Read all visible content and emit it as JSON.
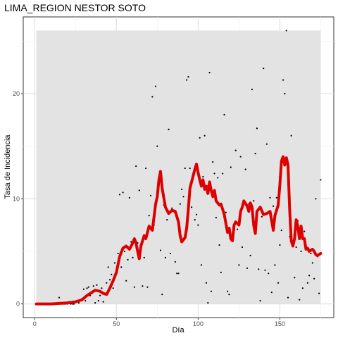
{
  "chart_data": {
    "type": "line",
    "title": "LIMA_REGION NESTOR SOTO",
    "xlabel": "Día",
    "ylabel": "Tasa de Incidencia",
    "xlim": [
      -7,
      183
    ],
    "ylim": [
      -1.3,
      27.3
    ],
    "xticks": [
      0,
      50,
      100,
      150
    ],
    "yticks": [
      0,
      10,
      20
    ],
    "grid": true,
    "band": {
      "x": [
        1,
        175
      ],
      "y": [
        0,
        26
      ],
      "color": "#e3e3e3"
    },
    "series": [
      {
        "kind": "line",
        "color": "#dd0000",
        "points": [
          [
            1,
            0
          ],
          [
            10,
            0
          ],
          [
            15,
            0.05
          ],
          [
            20,
            0.1
          ],
          [
            25,
            0.2
          ],
          [
            29,
            0.4
          ],
          [
            32,
            0.8
          ],
          [
            35,
            1.1
          ],
          [
            37,
            1.3
          ],
          [
            40,
            1.2
          ],
          [
            42,
            1.0
          ],
          [
            44,
            0.9
          ],
          [
            46,
            1.5
          ],
          [
            48,
            2.2
          ],
          [
            50,
            3.0
          ],
          [
            52,
            4.5
          ],
          [
            54,
            5.3
          ],
          [
            56,
            5.5
          ],
          [
            58,
            5.2
          ],
          [
            60,
            5.8
          ],
          [
            61,
            6.2
          ],
          [
            62,
            5.8
          ],
          [
            63,
            5.0
          ],
          [
            64,
            4.3
          ],
          [
            65,
            5.5
          ],
          [
            67,
            6.5
          ],
          [
            68,
            6.2
          ],
          [
            70,
            7.4
          ],
          [
            72,
            7.0
          ],
          [
            74,
            9.5
          ],
          [
            75,
            10.2
          ],
          [
            76,
            11.8
          ],
          [
            77,
            12.6
          ],
          [
            78,
            11.0
          ],
          [
            80,
            9.2
          ],
          [
            82,
            8.6
          ],
          [
            84,
            8.9
          ],
          [
            86,
            8.8
          ],
          [
            88,
            7.8
          ],
          [
            89,
            6.5
          ],
          [
            90,
            5.9
          ],
          [
            92,
            6.3
          ],
          [
            93,
            7.2
          ],
          [
            94,
            9.0
          ],
          [
            95,
            11.0
          ],
          [
            96,
            11.6
          ],
          [
            98,
            12.8
          ],
          [
            99,
            13.3
          ],
          [
            100,
            12.5
          ],
          [
            101,
            11.8
          ],
          [
            102,
            11.2
          ],
          [
            103,
            11.8
          ],
          [
            104,
            10.9
          ],
          [
            105,
            11.2
          ],
          [
            106,
            10.5
          ],
          [
            107,
            11.6
          ],
          [
            108,
            10.8
          ],
          [
            109,
            10.2
          ],
          [
            110,
            10.8
          ],
          [
            111,
            9.8
          ],
          [
            113,
            9.4
          ],
          [
            114,
            9.5
          ],
          [
            116,
            8.5
          ],
          [
            118,
            6.8
          ],
          [
            119,
            7.2
          ],
          [
            120,
            6.2
          ],
          [
            121,
            6.0
          ],
          [
            122,
            7.5
          ],
          [
            123,
            7.8
          ],
          [
            125,
            7.5
          ],
          [
            126,
            8.8
          ],
          [
            127,
            9.2
          ],
          [
            128,
            9.8
          ],
          [
            130,
            9.3
          ],
          [
            131,
            8.8
          ],
          [
            132,
            9.6
          ],
          [
            133,
            9.2
          ],
          [
            134,
            7.5
          ],
          [
            135,
            6.7
          ],
          [
            136,
            8.8
          ],
          [
            138,
            9.2
          ],
          [
            140,
            8.5
          ],
          [
            142,
            8.6
          ],
          [
            144,
            8.8
          ],
          [
            146,
            7.0
          ],
          [
            147,
            8.4
          ],
          [
            149,
            9.4
          ],
          [
            150,
            11.3
          ],
          [
            151,
            13.6
          ],
          [
            152,
            14.0
          ],
          [
            153,
            13.2
          ],
          [
            154,
            13.9
          ],
          [
            155,
            13.2
          ],
          [
            156,
            9.0
          ],
          [
            157,
            6.0
          ],
          [
            158,
            5.5
          ],
          [
            159,
            6.2
          ],
          [
            160,
            8.0
          ],
          [
            161,
            7.4
          ],
          [
            162,
            6.2
          ],
          [
            163,
            7.4
          ],
          [
            164,
            6.2
          ],
          [
            165,
            6.2
          ],
          [
            166,
            5.2
          ],
          [
            167,
            5.3
          ],
          [
            168,
            5.0
          ],
          [
            170,
            5.2
          ],
          [
            171,
            5.0
          ],
          [
            172,
            4.7
          ],
          [
            173,
            4.6
          ],
          [
            175,
            4.8
          ]
        ]
      },
      {
        "kind": "points",
        "color": "#000000",
        "points": [
          [
            1,
            0
          ],
          [
            2,
            0
          ],
          [
            3,
            0
          ],
          [
            4,
            0
          ],
          [
            5,
            0
          ],
          [
            6,
            0
          ],
          [
            7,
            0
          ],
          [
            8,
            0
          ],
          [
            9,
            0
          ],
          [
            10,
            0
          ],
          [
            11,
            0
          ],
          [
            12,
            0
          ],
          [
            13,
            0
          ],
          [
            14,
            0
          ],
          [
            15,
            0.6
          ],
          [
            16,
            0
          ],
          [
            17,
            0
          ],
          [
            18,
            0
          ],
          [
            19,
            0
          ],
          [
            20,
            0
          ],
          [
            21,
            0.2
          ],
          [
            22,
            0
          ],
          [
            23,
            0
          ],
          [
            24,
            0
          ],
          [
            25,
            0.2
          ],
          [
            26,
            0.3
          ],
          [
            27,
            0.1
          ],
          [
            28,
            0.4
          ],
          [
            29,
            0.5
          ],
          [
            30,
            1.4
          ],
          [
            31,
            0.3
          ],
          [
            32,
            1.5
          ],
          [
            33,
            1.6
          ],
          [
            34,
            0.8
          ],
          [
            35,
            1.0
          ],
          [
            36,
            1.7
          ],
          [
            37,
            0.1
          ],
          [
            38,
            1.8
          ],
          [
            39,
            0.3
          ],
          [
            40,
            0.8
          ],
          [
            41,
            1.5
          ],
          [
            42,
            0.2
          ],
          [
            43,
            0.9
          ],
          [
            44,
            2.0
          ],
          [
            45,
            3.5
          ],
          [
            46,
            2.3
          ],
          [
            47,
            2.8
          ],
          [
            48,
            1.5
          ],
          [
            49,
            3.9
          ],
          [
            50,
            3.0
          ],
          [
            51,
            4.8
          ],
          [
            52,
            10.4
          ],
          [
            53,
            3.5
          ],
          [
            54,
            10.6
          ],
          [
            55,
            5.0
          ],
          [
            56,
            2.2
          ],
          [
            57,
            4.2
          ],
          [
            58,
            10.1
          ],
          [
            59,
            5.9
          ],
          [
            60,
            4.4
          ],
          [
            61,
            1.6
          ],
          [
            62,
            13.1
          ],
          [
            63,
            5.8
          ],
          [
            64,
            10.8
          ],
          [
            65,
            5.2
          ],
          [
            66,
            1.7
          ],
          [
            67,
            4.4
          ],
          [
            68,
            12.9
          ],
          [
            69,
            1.6
          ],
          [
            70,
            8.4
          ],
          [
            71,
            10.3
          ],
          [
            72,
            19.7
          ],
          [
            73,
            7.5
          ],
          [
            74,
            20.7
          ],
          [
            75,
            15.0
          ],
          [
            76,
            11.7
          ],
          [
            77,
            5.1
          ],
          [
            78,
            0.9
          ],
          [
            79,
            9.4
          ],
          [
            80,
            4.4
          ],
          [
            81,
            8.0
          ],
          [
            82,
            16.6
          ],
          [
            83,
            4.8
          ],
          [
            84,
            9.1
          ],
          [
            85,
            8.8
          ],
          [
            86,
            4.0
          ],
          [
            87,
            2.9
          ],
          [
            88,
            2.9
          ],
          [
            89,
            9.5
          ],
          [
            90,
            10.9
          ],
          [
            91,
            10.2
          ],
          [
            92,
            12.9
          ],
          [
            93,
            21.3
          ],
          [
            94,
            21.6
          ],
          [
            95,
            12.9
          ],
          [
            96,
            9.2
          ],
          [
            97,
            11.9
          ],
          [
            98,
            8.0
          ],
          [
            99,
            8.5
          ],
          [
            100,
            7.5
          ],
          [
            101,
            15.8
          ],
          [
            102,
            3.7
          ],
          [
            103,
            12.1
          ],
          [
            104,
            16.0
          ],
          [
            105,
            2.0
          ],
          [
            106,
            0.1
          ],
          [
            107,
            22.0
          ],
          [
            108,
            1.2
          ],
          [
            109,
            13.5
          ],
          [
            110,
            12.4
          ],
          [
            111,
            8.2
          ],
          [
            112,
            12.0
          ],
          [
            113,
            5.6
          ],
          [
            114,
            3.0
          ],
          [
            115,
            12.4
          ],
          [
            116,
            18.0
          ],
          [
            117,
            8.7
          ],
          [
            118,
            1.2
          ],
          [
            119,
            0.9
          ],
          [
            120,
            13.0
          ],
          [
            121,
            6.7
          ],
          [
            122,
            7.5
          ],
          [
            123,
            14.6
          ],
          [
            124,
            7.1
          ],
          [
            125,
            3.7
          ],
          [
            126,
            14.0
          ],
          [
            127,
            5.4
          ],
          [
            128,
            9.7
          ],
          [
            129,
            12.8
          ],
          [
            130,
            3.4
          ],
          [
            131,
            9.5
          ],
          [
            132,
            4.6
          ],
          [
            133,
            20.4
          ],
          [
            134,
            9.8
          ],
          [
            135,
            14.3
          ],
          [
            136,
            16.7
          ],
          [
            137,
            3.3
          ],
          [
            138,
            0.3
          ],
          [
            139,
            8.3
          ],
          [
            140,
            22.4
          ],
          [
            141,
            3.2
          ],
          [
            142,
            15.2
          ],
          [
            143,
            2.9
          ],
          [
            144,
            10.1
          ],
          [
            145,
            1.1
          ],
          [
            146,
            9.3
          ],
          [
            147,
            3.7
          ],
          [
            148,
            10.1
          ],
          [
            149,
            2.0
          ],
          [
            150,
            5.6
          ],
          [
            151,
            7.0
          ],
          [
            152,
            21.3
          ],
          [
            153,
            20.0
          ],
          [
            154,
            26.0
          ],
          [
            155,
            0.6
          ],
          [
            156,
            6.4
          ],
          [
            157,
            16.0
          ],
          [
            158,
            5.8
          ],
          [
            159,
            2.5
          ],
          [
            160,
            5.4
          ],
          [
            161,
            7.9
          ],
          [
            162,
            0.4
          ],
          [
            163,
            5.0
          ],
          [
            164,
            1.5
          ],
          [
            165,
            6.9
          ],
          [
            166,
            5.3
          ],
          [
            167,
            2.0
          ],
          [
            168,
            2.7
          ],
          [
            169,
            4.8
          ],
          [
            170,
            3.9
          ],
          [
            171,
            2.4
          ],
          [
            172,
            10.0
          ],
          [
            173,
            4.5
          ],
          [
            174,
            1.0
          ],
          [
            175,
            11.8
          ]
        ]
      }
    ]
  }
}
